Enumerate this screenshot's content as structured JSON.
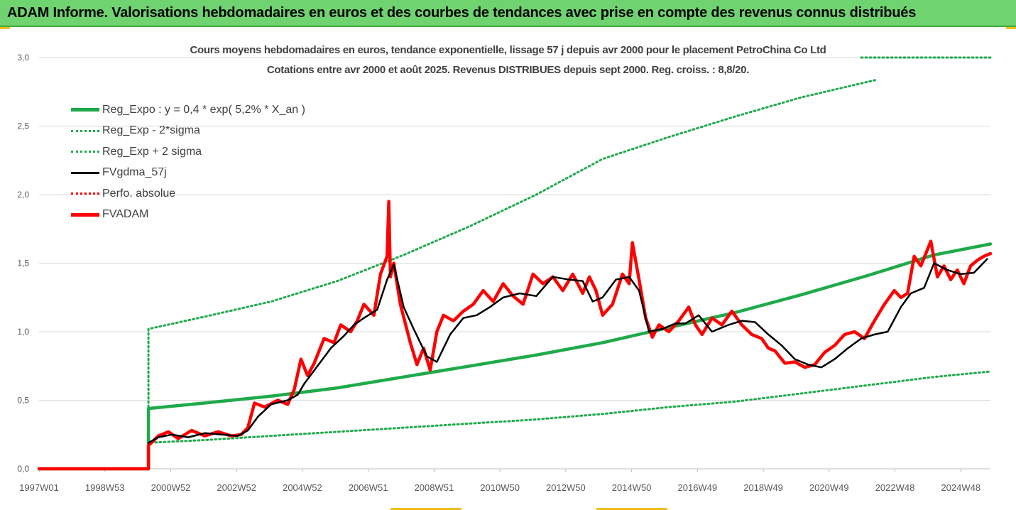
{
  "header": {
    "title": "ADAM Informe. Valorisations hebdomadaires en euros et des courbes de tendances avec prise en compte des revenus connus distribués"
  },
  "colors": {
    "banner": "#6fd36f",
    "trend": "#1faa4a",
    "band": "#1faa4a",
    "smooth": "#000000",
    "absolute": "#ff0000",
    "fvadam": "#ff0000"
  },
  "chart_data": {
    "type": "line",
    "title": "Cours moyens hebdomadaires en euros, tendance exponentielle, lissage 57 j depuis avr 2000 pour le placement PetroChina Co Ltd",
    "subtitle": "Cotations entre avr 2000 et août 2025. Revenus DISTRIBUES depuis sept 2000. Reg. croiss. : 8,8/20.",
    "xlabel": "",
    "ylabel": "",
    "x_ticks": [
      "1997W01",
      "1998W53",
      "2000W52",
      "2002W52",
      "2004W52",
      "2006W51",
      "2008W51",
      "2010W50",
      "2012W50",
      "2014W50",
      "2016W49",
      "2018W49",
      "2020W49",
      "2022W48",
      "2024W48"
    ],
    "y_ticks": [
      "0,0",
      "0,5",
      "1,0",
      "1,5",
      "2,0",
      "2,5",
      "3,0"
    ],
    "ylim": [
      0,
      3
    ],
    "xlim": [
      1997.0,
      2025.7
    ],
    "grid": "horizontal",
    "legend_position": "top-left",
    "series": [
      {
        "name": "Reg_Expo : y = 0,4 * exp( 5,2% *  X_an )",
        "style": "solid-thick",
        "color": "#1faa4a",
        "x": [
          1997.0,
          2000.3,
          2000.3,
          2002,
          2004,
          2006,
          2008,
          2010,
          2012,
          2014,
          2016,
          2018,
          2020,
          2022,
          2024,
          2025.7
        ],
        "y": [
          0,
          0,
          0.44,
          0.48,
          0.53,
          0.59,
          0.67,
          0.75,
          0.83,
          0.92,
          1.03,
          1.14,
          1.27,
          1.41,
          1.56,
          1.64
        ]
      },
      {
        "name": "Reg_Exp - 2*sigma",
        "style": "dotted",
        "color": "#1faa4a",
        "x": [
          2000.3,
          2000.3,
          2002,
          2004,
          2006,
          2008,
          2010,
          2012,
          2014,
          2016,
          2018,
          2020,
          2022,
          2024,
          2025.7
        ],
        "y": [
          0.45,
          0.19,
          0.21,
          0.24,
          0.27,
          0.3,
          0.33,
          0.36,
          0.4,
          0.45,
          0.49,
          0.55,
          0.61,
          0.67,
          0.71
        ]
      },
      {
        "name": "Reg_Exp + 2 sigma",
        "style": "dotted",
        "color": "#1faa4a",
        "x": [
          2000.3,
          2000.3,
          2002,
          2004,
          2006,
          2008,
          2010,
          2012,
          2014,
          2016,
          2018,
          2020,
          2022.3
        ],
        "y": [
          0.45,
          1.02,
          1.11,
          1.22,
          1.37,
          1.56,
          1.77,
          2.0,
          2.26,
          2.42,
          2.57,
          2.71,
          2.84
        ]
      },
      {
        "name": "FVgdma_57j",
        "style": "solid",
        "color": "#000000",
        "x": [
          2000.3,
          2000.6,
          2001.0,
          2001.5,
          2002.0,
          2002.5,
          2003.0,
          2003.3,
          2003.6,
          2004.0,
          2004.5,
          2004.8,
          2005.0,
          2005.4,
          2005.8,
          2006.2,
          2006.5,
          2006.8,
          2007.2,
          2007.5,
          2007.7,
          2008.0,
          2008.3,
          2008.7,
          2009.0,
          2009.4,
          2009.8,
          2010.2,
          2010.6,
          2011.0,
          2011.5,
          2012.0,
          2012.5,
          2013.0,
          2013.4,
          2013.7,
          2014.0,
          2014.4,
          2014.8,
          2015.1,
          2015.4,
          2015.8,
          2016.2,
          2016.5,
          2016.9,
          2017.3,
          2017.8,
          2018.2,
          2018.6,
          2019.0,
          2019.4,
          2019.8,
          2020.2,
          2020.6,
          2021.0,
          2021.4,
          2021.8,
          2022.2,
          2022.6,
          2023.0,
          2023.3,
          2023.7,
          2024.0,
          2024.4,
          2024.8,
          2025.2,
          2025.6
        ],
        "y": [
          0.19,
          0.23,
          0.25,
          0.23,
          0.26,
          0.25,
          0.24,
          0.28,
          0.38,
          0.47,
          0.5,
          0.54,
          0.62,
          0.75,
          0.88,
          0.97,
          1.05,
          1.1,
          1.16,
          1.38,
          1.49,
          1.18,
          1.02,
          0.82,
          0.78,
          0.98,
          1.1,
          1.12,
          1.18,
          1.25,
          1.28,
          1.26,
          1.4,
          1.38,
          1.37,
          1.22,
          1.25,
          1.38,
          1.4,
          1.3,
          1.0,
          1.02,
          1.06,
          1.06,
          1.12,
          1.0,
          1.05,
          1.08,
          1.07,
          0.98,
          0.9,
          0.8,
          0.76,
          0.74,
          0.8,
          0.88,
          0.95,
          0.98,
          1.0,
          1.18,
          1.28,
          1.32,
          1.5,
          1.45,
          1.42,
          1.43,
          1.53
        ]
      },
      {
        "name": "Perfo. absolue",
        "style": "dotted",
        "color": "#ff0000",
        "x": [
          1997.0,
          2000.3
        ],
        "y": [
          0,
          0
        ]
      },
      {
        "name": "FVADAM",
        "style": "solid-thick",
        "color": "#ff0000",
        "x": [
          1997.0,
          2000.3,
          2000.3,
          2000.6,
          2000.9,
          2001.2,
          2001.6,
          2002.0,
          2002.4,
          2002.8,
          2003.1,
          2003.3,
          2003.5,
          2003.8,
          2004.2,
          2004.5,
          2004.7,
          2004.9,
          2005.1,
          2005.3,
          2005.6,
          2005.9,
          2006.1,
          2006.4,
          2006.6,
          2006.8,
          2007.1,
          2007.3,
          2007.5,
          2007.55,
          2007.6,
          2007.7,
          2007.9,
          2008.2,
          2008.4,
          2008.6,
          2008.8,
          2009.0,
          2009.2,
          2009.5,
          2009.8,
          2010.1,
          2010.4,
          2010.7,
          2011.0,
          2011.3,
          2011.6,
          2011.9,
          2012.2,
          2012.5,
          2012.8,
          2013.1,
          2013.4,
          2013.6,
          2013.8,
          2014.0,
          2014.3,
          2014.6,
          2014.8,
          2014.9,
          2015.1,
          2015.3,
          2015.5,
          2015.7,
          2016.0,
          2016.3,
          2016.6,
          2016.8,
          2017.0,
          2017.3,
          2017.6,
          2017.9,
          2018.2,
          2018.5,
          2018.8,
          2019.0,
          2019.2,
          2019.5,
          2019.8,
          2020.1,
          2020.4,
          2020.7,
          2021.0,
          2021.3,
          2021.6,
          2021.9,
          2022.2,
          2022.5,
          2022.8,
          2023.0,
          2023.2,
          2023.4,
          2023.6,
          2023.9,
          2024.1,
          2024.3,
          2024.5,
          2024.7,
          2024.9,
          2025.1,
          2025.3,
          2025.5,
          2025.7
        ],
        "y": [
          0,
          0,
          0.17,
          0.24,
          0.27,
          0.22,
          0.28,
          0.24,
          0.27,
          0.24,
          0.25,
          0.3,
          0.48,
          0.45,
          0.5,
          0.47,
          0.58,
          0.8,
          0.68,
          0.77,
          0.95,
          0.92,
          1.05,
          1.0,
          1.08,
          1.2,
          1.12,
          1.42,
          1.55,
          1.95,
          1.4,
          1.5,
          1.2,
          0.92,
          0.76,
          0.88,
          0.72,
          1.0,
          1.12,
          1.08,
          1.15,
          1.2,
          1.3,
          1.22,
          1.35,
          1.26,
          1.2,
          1.42,
          1.35,
          1.4,
          1.3,
          1.42,
          1.28,
          1.4,
          1.3,
          1.12,
          1.2,
          1.42,
          1.35,
          1.65,
          1.38,
          1.1,
          0.96,
          1.05,
          1.0,
          1.08,
          1.18,
          1.05,
          0.98,
          1.1,
          1.05,
          1.15,
          1.05,
          0.98,
          0.95,
          0.88,
          0.86,
          0.77,
          0.78,
          0.74,
          0.76,
          0.85,
          0.9,
          0.98,
          1.0,
          0.95,
          1.08,
          1.2,
          1.3,
          1.25,
          1.28,
          1.55,
          1.48,
          1.66,
          1.4,
          1.48,
          1.38,
          1.45,
          1.35,
          1.48,
          1.52,
          1.55,
          1.57
        ]
      }
    ]
  }
}
